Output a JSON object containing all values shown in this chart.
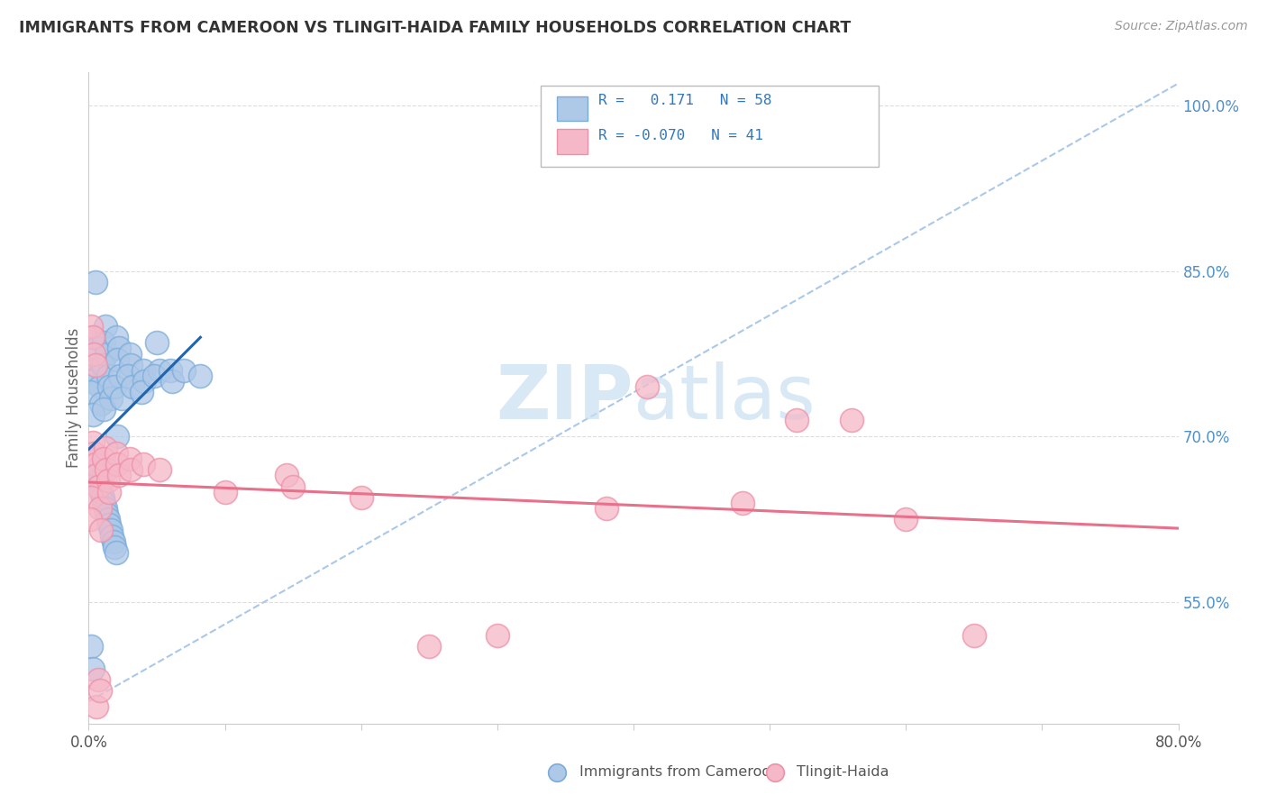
{
  "title": "IMMIGRANTS FROM CAMEROON VS TLINGIT-HAIDA FAMILY HOUSEHOLDS CORRELATION CHART",
  "source_text": "Source: ZipAtlas.com",
  "ylabel": "Family Households",
  "xmin": 0.0,
  "xmax": 0.8,
  "ymin": 0.44,
  "ymax": 1.03,
  "ytick_positions": [
    0.55,
    0.7,
    0.85,
    1.0
  ],
  "ytick_labels": [
    "55.0%",
    "70.0%",
    "85.0%",
    "100.0%"
  ],
  "legend1_label": "Immigrants from Cameroon",
  "legend2_label": "Tlingit-Haida",
  "R1": 0.171,
  "N1": 58,
  "R2": -0.07,
  "N2": 41,
  "blue_face": "#aec8e8",
  "blue_edge": "#7aacda",
  "pink_face": "#f5b8c8",
  "pink_edge": "#ee90a8",
  "trend_blue": "#2166ac",
  "trend_pink": "#e8708a",
  "dash_color": "#aac8e8",
  "watermark_color": "#c8dff0",
  "ytick_color": "#5090c8",
  "xtick_color": "#555555",
  "grid_color": "#dddddd",
  "spine_color": "#cccccc",
  "blue_x": [
    0.005,
    0.003,
    0.006,
    0.004,
    0.007,
    0.002,
    0.008,
    0.001,
    0.009,
    0.003,
    0.012,
    0.011,
    0.013,
    0.01,
    0.014,
    0.015,
    0.016,
    0.011,
    0.02,
    0.022,
    0.021,
    0.023,
    0.019,
    0.024,
    0.03,
    0.031,
    0.029,
    0.032,
    0.04,
    0.041,
    0.039,
    0.05,
    0.052,
    0.048,
    0.06,
    0.061,
    0.07,
    0.082,
    0.004,
    0.005,
    0.006,
    0.007,
    0.008,
    0.009,
    0.01,
    0.011,
    0.012,
    0.013,
    0.014,
    0.015,
    0.016,
    0.017,
    0.018,
    0.019,
    0.02,
    0.002,
    0.003,
    0.021
  ],
  "blue_y": [
    0.84,
    0.79,
    0.78,
    0.76,
    0.755,
    0.75,
    0.745,
    0.74,
    0.73,
    0.72,
    0.8,
    0.785,
    0.775,
    0.765,
    0.755,
    0.745,
    0.735,
    0.725,
    0.79,
    0.78,
    0.77,
    0.755,
    0.745,
    0.735,
    0.775,
    0.765,
    0.755,
    0.745,
    0.76,
    0.75,
    0.74,
    0.785,
    0.76,
    0.755,
    0.76,
    0.75,
    0.76,
    0.755,
    0.68,
    0.67,
    0.665,
    0.66,
    0.655,
    0.65,
    0.645,
    0.64,
    0.635,
    0.63,
    0.625,
    0.62,
    0.615,
    0.61,
    0.605,
    0.6,
    0.595,
    0.51,
    0.49,
    0.7
  ],
  "pink_x": [
    0.003,
    0.004,
    0.005,
    0.006,
    0.007,
    0.002,
    0.008,
    0.001,
    0.009,
    0.012,
    0.011,
    0.013,
    0.014,
    0.015,
    0.02,
    0.021,
    0.022,
    0.03,
    0.031,
    0.04,
    0.052,
    0.1,
    0.145,
    0.15,
    0.2,
    0.25,
    0.3,
    0.38,
    0.41,
    0.48,
    0.52,
    0.56,
    0.6,
    0.65,
    0.002,
    0.003,
    0.004,
    0.005,
    0.006,
    0.007,
    0.008
  ],
  "pink_y": [
    0.695,
    0.685,
    0.675,
    0.665,
    0.655,
    0.645,
    0.635,
    0.625,
    0.615,
    0.69,
    0.68,
    0.67,
    0.66,
    0.65,
    0.685,
    0.675,
    0.665,
    0.68,
    0.67,
    0.675,
    0.67,
    0.65,
    0.665,
    0.655,
    0.645,
    0.51,
    0.52,
    0.635,
    0.745,
    0.64,
    0.715,
    0.715,
    0.625,
    0.52,
    0.8,
    0.79,
    0.775,
    0.765,
    0.455,
    0.48,
    0.47
  ]
}
